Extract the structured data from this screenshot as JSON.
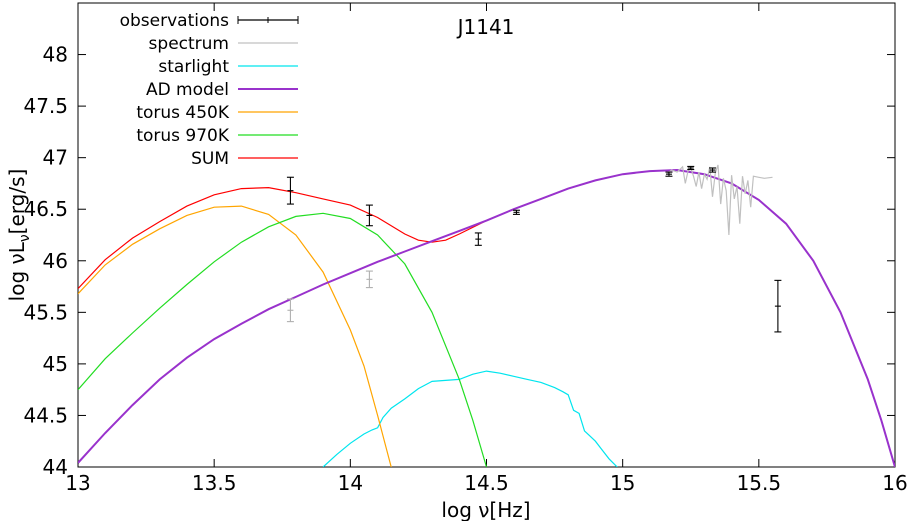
{
  "chart_data": {
    "type": "line",
    "title": "J1141",
    "xlabel": "log ν[Hz]",
    "ylabel_parts": [
      "log νL",
      "ν",
      "[erg/s]"
    ],
    "xlim": [
      13,
      16
    ],
    "ylim": [
      44,
      48.5
    ],
    "xticks": [
      13,
      13.5,
      14,
      14.5,
      15,
      15.5,
      16
    ],
    "xtick_labels": [
      "13",
      "13.5",
      "14",
      "14.5",
      "15",
      "15.5",
      "16"
    ],
    "yticks": [
      44,
      44.5,
      45,
      45.5,
      46,
      46.5,
      47,
      47.5,
      48
    ],
    "ytick_labels": [
      "44",
      "44.5",
      "45",
      "45.5",
      "46",
      "46.5",
      "47",
      "47.5",
      "48"
    ],
    "legend_position": "top-left",
    "grid": false,
    "series": [
      {
        "name": "observations",
        "kind": "errorbar",
        "color": "#000000",
        "points": [
          {
            "x": 13.78,
            "y": 46.68,
            "yerr": 0.13
          },
          {
            "x": 14.07,
            "y": 46.44,
            "yerr": 0.1
          },
          {
            "x": 14.47,
            "y": 46.21,
            "yerr": 0.06
          },
          {
            "x": 14.61,
            "y": 46.47,
            "yerr": 0.02
          },
          {
            "x": 15.17,
            "y": 46.84,
            "yerr": 0.02
          },
          {
            "x": 15.25,
            "y": 46.9,
            "yerr": 0.015
          },
          {
            "x": 15.33,
            "y": 46.88,
            "yerr": 0.02
          },
          {
            "x": 15.57,
            "y": 45.56,
            "yerr": 0.25
          }
        ]
      },
      {
        "name": "",
        "kind": "errorbar",
        "color": "#b0b0b0",
        "points": [
          {
            "x": 13.78,
            "y": 45.52,
            "yerr": 0.11
          },
          {
            "x": 14.07,
            "y": 45.82,
            "yerr": 0.08
          }
        ]
      },
      {
        "name": "spectrum",
        "kind": "line",
        "color": "#c0c0c0",
        "x": [
          15.16,
          15.18,
          15.2,
          15.22,
          15.23,
          15.24,
          15.25,
          15.26,
          15.27,
          15.28,
          15.29,
          15.3,
          15.31,
          15.32,
          15.33,
          15.34,
          15.35,
          15.36,
          15.37,
          15.38,
          15.39,
          15.4,
          15.41,
          15.42,
          15.43,
          15.44,
          15.45,
          15.46,
          15.47,
          15.48,
          15.5,
          15.52,
          15.55
        ],
        "y": [
          46.84,
          46.88,
          46.86,
          46.91,
          46.75,
          46.87,
          46.9,
          46.82,
          46.72,
          46.86,
          46.7,
          46.84,
          46.79,
          46.91,
          46.62,
          46.85,
          46.93,
          46.55,
          46.8,
          46.68,
          46.25,
          46.83,
          46.6,
          46.72,
          46.36,
          46.82,
          46.65,
          46.78,
          46.52,
          46.82,
          46.81,
          46.8,
          46.81
        ]
      },
      {
        "name": "starlight",
        "kind": "line",
        "color": "#00e5ee",
        "x": [
          13.9,
          13.95,
          14.0,
          14.05,
          14.08,
          14.1,
          14.12,
          14.15,
          14.2,
          14.25,
          14.3,
          14.35,
          14.4,
          14.45,
          14.5,
          14.55,
          14.6,
          14.65,
          14.7,
          14.75,
          14.78,
          14.8,
          14.82,
          14.84,
          14.86,
          14.88,
          14.9,
          14.92,
          14.95,
          14.98
        ],
        "y": [
          44.0,
          44.12,
          44.23,
          44.32,
          44.36,
          44.38,
          44.48,
          44.57,
          44.66,
          44.76,
          44.83,
          44.84,
          44.85,
          44.9,
          44.93,
          44.91,
          44.88,
          44.85,
          44.82,
          44.77,
          44.73,
          44.7,
          44.55,
          44.52,
          44.35,
          44.3,
          44.25,
          44.18,
          44.08,
          44.0
        ]
      },
      {
        "name": "AD model",
        "kind": "line",
        "color": "#9932cc",
        "x": [
          13.0,
          13.1,
          13.2,
          13.3,
          13.4,
          13.5,
          13.6,
          13.7,
          13.8,
          13.9,
          14.0,
          14.1,
          14.2,
          14.3,
          14.4,
          14.5,
          14.6,
          14.7,
          14.8,
          14.9,
          15.0,
          15.1,
          15.2,
          15.3,
          15.4,
          15.5,
          15.6,
          15.7,
          15.8,
          15.9,
          15.95,
          16.0
        ],
        "y": [
          44.04,
          44.33,
          44.6,
          44.85,
          45.06,
          45.24,
          45.39,
          45.53,
          45.65,
          45.77,
          45.88,
          45.99,
          46.09,
          46.19,
          46.29,
          46.39,
          46.5,
          46.6,
          46.7,
          46.78,
          46.84,
          46.87,
          46.88,
          46.84,
          46.75,
          46.59,
          46.36,
          46.0,
          45.5,
          44.85,
          44.45,
          44.0
        ]
      },
      {
        "name": "torus 450K",
        "kind": "line",
        "color": "#ffa500",
        "x": [
          13.0,
          13.1,
          13.2,
          13.3,
          13.4,
          13.5,
          13.6,
          13.7,
          13.8,
          13.9,
          14.0,
          14.05,
          14.1,
          14.15
        ],
        "y": [
          45.68,
          45.96,
          46.16,
          46.31,
          46.44,
          46.52,
          46.53,
          46.45,
          46.25,
          45.89,
          45.33,
          44.98,
          44.5,
          44.0
        ]
      },
      {
        "name": "torus 970K",
        "kind": "line",
        "color": "#22dd22",
        "x": [
          13.0,
          13.1,
          13.2,
          13.3,
          13.4,
          13.5,
          13.6,
          13.7,
          13.8,
          13.9,
          14.0,
          14.1,
          14.2,
          14.3,
          14.4,
          14.45,
          14.5
        ],
        "y": [
          44.75,
          45.05,
          45.3,
          45.54,
          45.77,
          45.99,
          46.18,
          46.33,
          46.43,
          46.46,
          46.41,
          46.25,
          45.97,
          45.5,
          44.85,
          44.45,
          44.0
        ]
      },
      {
        "name": "SUM",
        "kind": "line",
        "color": "#ff0000",
        "x": [
          13.0,
          13.1,
          13.2,
          13.3,
          13.4,
          13.5,
          13.6,
          13.7,
          13.8,
          13.9,
          14.0,
          14.1,
          14.2,
          14.25,
          14.3,
          14.35,
          14.4,
          14.5,
          14.6,
          14.7,
          14.8,
          14.9,
          15.0,
          15.1,
          15.2,
          15.3,
          15.4,
          15.5,
          15.6,
          15.7,
          15.8,
          15.9,
          15.95,
          16.0
        ],
        "y": [
          45.73,
          46.01,
          46.22,
          46.38,
          46.53,
          46.64,
          46.7,
          46.71,
          46.66,
          46.6,
          46.54,
          46.42,
          46.26,
          46.2,
          46.18,
          46.2,
          46.26,
          46.39,
          46.5,
          46.6,
          46.7,
          46.78,
          46.84,
          46.87,
          46.88,
          46.84,
          46.75,
          46.59,
          46.36,
          46.0,
          45.5,
          44.85,
          44.45,
          44.0
        ]
      }
    ]
  }
}
